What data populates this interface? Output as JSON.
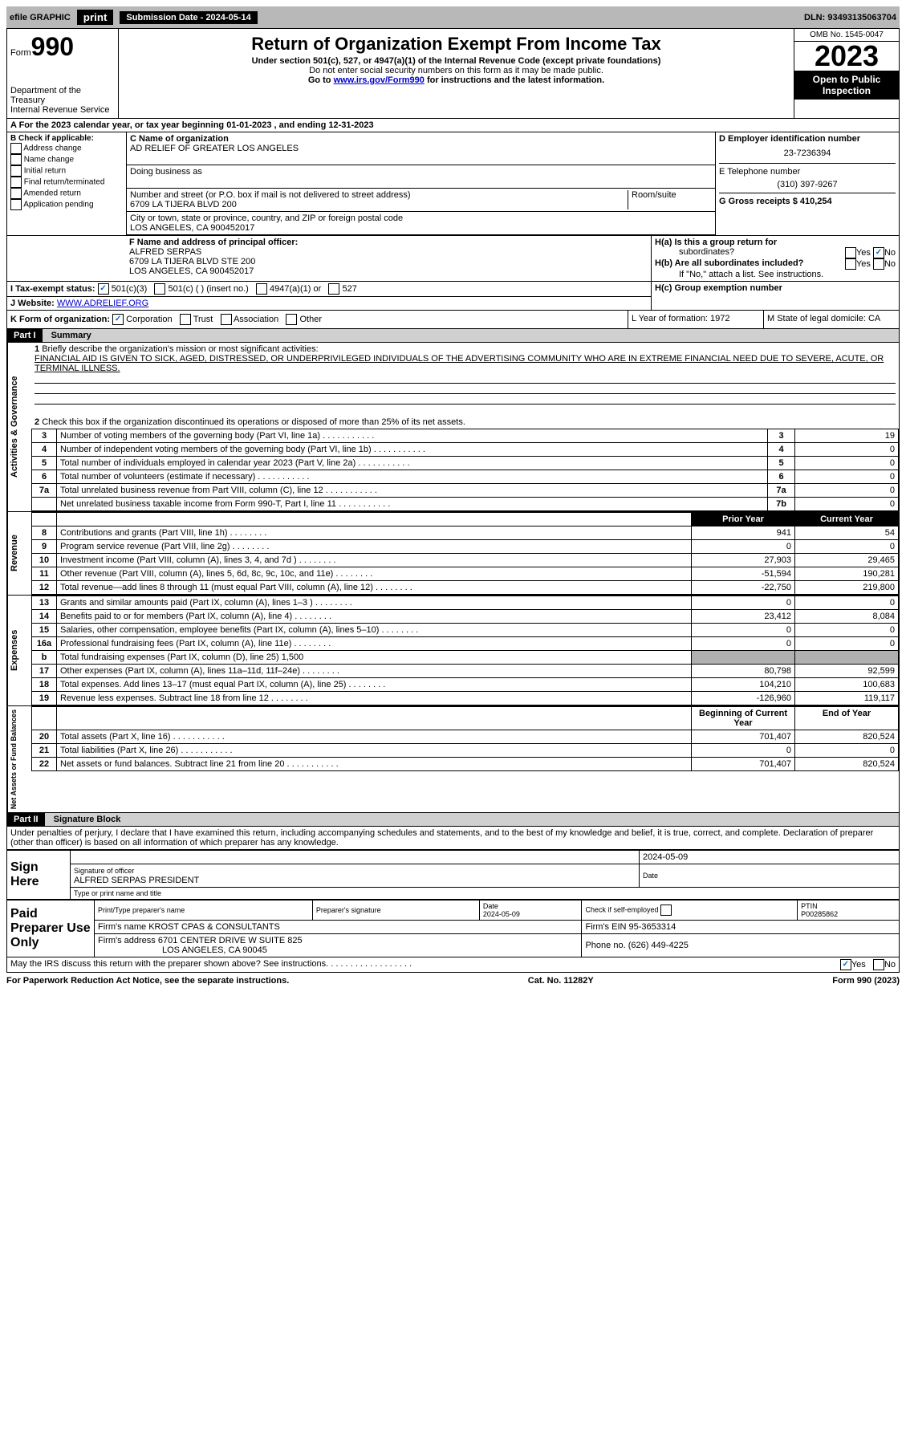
{
  "topbar": {
    "efile": "efile GRAPHIC",
    "print": "print",
    "submission_label": "Submission Date - 2024-05-14",
    "dln_label": "DLN: 93493135063704"
  },
  "header": {
    "form_label": "Form",
    "form_number": "990",
    "dept": "Department of the Treasury",
    "irs": "Internal Revenue Service",
    "title": "Return of Organization Exempt From Income Tax",
    "sub1": "Under section 501(c), 527, or 4947(a)(1) of the Internal Revenue Code (except private foundations)",
    "sub2": "Do not enter social security numbers on this form as it may be made public.",
    "sub3_pre": "Go to ",
    "sub3_link": "www.irs.gov/Form990",
    "sub3_post": " for instructions and the latest information.",
    "omb": "OMB No. 1545-0047",
    "year": "2023",
    "inspection": "Open to Public Inspection"
  },
  "line_a": "A For the 2023 calendar year, or tax year beginning 01-01-2023    , and ending 12-31-2023",
  "section_b": {
    "label": "B Check if applicable:",
    "opts": [
      "Address change",
      "Name change",
      "Initial return",
      "Final return/terminated",
      "Amended return",
      "Application pending"
    ]
  },
  "section_c": {
    "name_label": "C Name of organization",
    "name": "AD RELIEF OF GREATER LOS ANGELES",
    "dba_label": "Doing business as",
    "addr_label": "Number and street (or P.O. box if mail is not delivered to street address)",
    "addr": "6709 LA TIJERA BLVD 200",
    "room_label": "Room/suite",
    "city_label": "City or town, state or province, country, and ZIP or foreign postal code",
    "city": "LOS ANGELES, CA  900452017"
  },
  "section_d": {
    "ein_label": "D Employer identification number",
    "ein": "23-7236394",
    "phone_label": "E Telephone number",
    "phone": "(310) 397-9267",
    "gross_label": "G Gross receipts $ 410,254"
  },
  "section_f": {
    "label": "F  Name and address of principal officer:",
    "name": "ALFRED SERPAS",
    "addr1": "6709 LA TIJERA BLVD STE 200",
    "addr2": "LOS ANGELES, CA  900452017"
  },
  "section_h": {
    "ha_label": "H(a)  Is this a group return for",
    "ha_sub": "subordinates?",
    "hb_label": "H(b)  Are all subordinates included?",
    "hb_note": "If \"No,\" attach a list. See instructions.",
    "hc_label": "H(c)  Group exemption number  ",
    "yes": "Yes",
    "no": "No"
  },
  "section_i": {
    "label": "I    Tax-exempt status:",
    "opt1": "501(c)(3)",
    "opt2": "501(c) (   ) (insert no.)",
    "opt3": "4947(a)(1) or",
    "opt4": "527"
  },
  "section_j": {
    "label": "J   Website: ",
    "value": "WWW.ADRELIEF.ORG"
  },
  "section_k": {
    "label": "K Form of organization:",
    "opts": [
      "Corporation",
      "Trust",
      "Association",
      "Other"
    ]
  },
  "section_l": {
    "label": "L Year of formation: 1972"
  },
  "section_m": {
    "label": "M State of legal domicile: CA"
  },
  "part1": {
    "header": "Part I",
    "title": "Summary",
    "line1_label": "Briefly describe the organization's mission or most significant activities:",
    "line1_text": "FINANCIAL AID IS GIVEN TO SICK, AGED, DISTRESSED, OR UNDERPRIVILEGED INDIVIDUALS OF THE ADVERTISING COMMUNITY WHO ARE IN EXTREME FINANCIAL NEED DUE TO SEVERE, ACUTE, OR TERMINAL ILLNESS.",
    "sidebar_gov": "Activities & Governance",
    "sidebar_rev": "Revenue",
    "sidebar_exp": "Expenses",
    "sidebar_net": "Net Assets or Fund Balances",
    "line2": "Check this box       if the organization discontinued its operations or disposed of more than 25% of its net assets.",
    "lines_gov": [
      {
        "n": "3",
        "t": "Number of voting members of the governing body (Part VI, line 1a)",
        "k": "3",
        "v": "19"
      },
      {
        "n": "4",
        "t": "Number of independent voting members of the governing body (Part VI, line 1b)",
        "k": "4",
        "v": "0"
      },
      {
        "n": "5",
        "t": "Total number of individuals employed in calendar year 2023 (Part V, line 2a)",
        "k": "5",
        "v": "0"
      },
      {
        "n": "6",
        "t": "Total number of volunteers (estimate if necessary)",
        "k": "6",
        "v": "0"
      },
      {
        "n": "7a",
        "t": "Total unrelated business revenue from Part VIII, column (C), line 12",
        "k": "7a",
        "v": "0"
      },
      {
        "n": "",
        "t": "Net unrelated business taxable income from Form 990-T, Part I, line 11",
        "k": "7b",
        "v": "0"
      }
    ],
    "hdr_prior": "Prior Year",
    "hdr_current": "Current Year",
    "lines_rev": [
      {
        "n": "8",
        "t": "Contributions and grants (Part VIII, line 1h)",
        "p": "941",
        "c": "54"
      },
      {
        "n": "9",
        "t": "Program service revenue (Part VIII, line 2g)",
        "p": "0",
        "c": "0"
      },
      {
        "n": "10",
        "t": "Investment income (Part VIII, column (A), lines 3, 4, and 7d )",
        "p": "27,903",
        "c": "29,465"
      },
      {
        "n": "11",
        "t": "Other revenue (Part VIII, column (A), lines 5, 6d, 8c, 9c, 10c, and 11e)",
        "p": "-51,594",
        "c": "190,281"
      },
      {
        "n": "12",
        "t": "Total revenue—add lines 8 through 11 (must equal Part VIII, column (A), line 12)",
        "p": "-22,750",
        "c": "219,800"
      }
    ],
    "lines_exp": [
      {
        "n": "13",
        "t": "Grants and similar amounts paid (Part IX, column (A), lines 1–3 )",
        "p": "0",
        "c": "0"
      },
      {
        "n": "14",
        "t": "Benefits paid to or for members (Part IX, column (A), line 4)",
        "p": "23,412",
        "c": "8,084"
      },
      {
        "n": "15",
        "t": "Salaries, other compensation, employee benefits (Part IX, column (A), lines 5–10)",
        "p": "0",
        "c": "0"
      },
      {
        "n": "16a",
        "t": "Professional fundraising fees (Part IX, column (A), line 11e)",
        "p": "0",
        "c": "0"
      },
      {
        "n": "b",
        "t": "Total fundraising expenses (Part IX, column (D), line 25) 1,500",
        "p": "",
        "c": "",
        "shaded": true
      },
      {
        "n": "17",
        "t": "Other expenses (Part IX, column (A), lines 11a–11d, 11f–24e)",
        "p": "80,798",
        "c": "92,599"
      },
      {
        "n": "18",
        "t": "Total expenses. Add lines 13–17 (must equal Part IX, column (A), line 25)",
        "p": "104,210",
        "c": "100,683"
      },
      {
        "n": "19",
        "t": "Revenue less expenses. Subtract line 18 from line 12",
        "p": "-126,960",
        "c": "119,117"
      }
    ],
    "hdr_boy": "Beginning of Current Year",
    "hdr_eoy": "End of Year",
    "lines_net": [
      {
        "n": "20",
        "t": "Total assets (Part X, line 16)",
        "p": "701,407",
        "c": "820,524"
      },
      {
        "n": "21",
        "t": "Total liabilities (Part X, line 26)",
        "p": "0",
        "c": "0"
      },
      {
        "n": "22",
        "t": "Net assets or fund balances. Subtract line 21 from line 20",
        "p": "701,407",
        "c": "820,524"
      }
    ]
  },
  "part2": {
    "header": "Part II",
    "title": "Signature Block",
    "declaration": "Under penalties of perjury, I declare that I have examined this return, including accompanying schedules and statements, and to the best of my knowledge and belief, it is true, correct, and complete. Declaration of preparer (other than officer) is based on all information of which preparer has any knowledge."
  },
  "sign": {
    "here_label": "Sign Here",
    "sig_label": "Signature of officer",
    "date_label": "Date",
    "date": "2024-05-09",
    "name": "ALFRED SERPAS  PRESIDENT",
    "type_label": "Type or print name and title"
  },
  "preparer": {
    "label": "Paid Preparer Use Only",
    "name_label": "Print/Type preparer's name",
    "sig_label": "Preparer's signature",
    "date_label": "Date",
    "date": "2024-05-09",
    "check_label": "Check        if self-employed",
    "ptin_label": "PTIN",
    "ptin": "P00285862",
    "firm_name_label": "Firm's name   ",
    "firm_name": "KROST CPAS & CONSULTANTS",
    "firm_ein_label": "Firm's EIN  ",
    "firm_ein": "95-3653314",
    "firm_addr_label": "Firm's address ",
    "firm_addr1": "6701 CENTER DRIVE W SUITE 825",
    "firm_addr2": "LOS ANGELES, CA  90045",
    "phone_label": "Phone no. ",
    "phone": "(626) 449-4225"
  },
  "discuss": {
    "text": "May the IRS discuss this return with the preparer shown above? See instructions.",
    "yes": "Yes",
    "no": "No"
  },
  "footer": {
    "left": "For Paperwork Reduction Act Notice, see the separate instructions.",
    "center": "Cat. No. 11282Y",
    "right": "Form 990 (2023)"
  }
}
